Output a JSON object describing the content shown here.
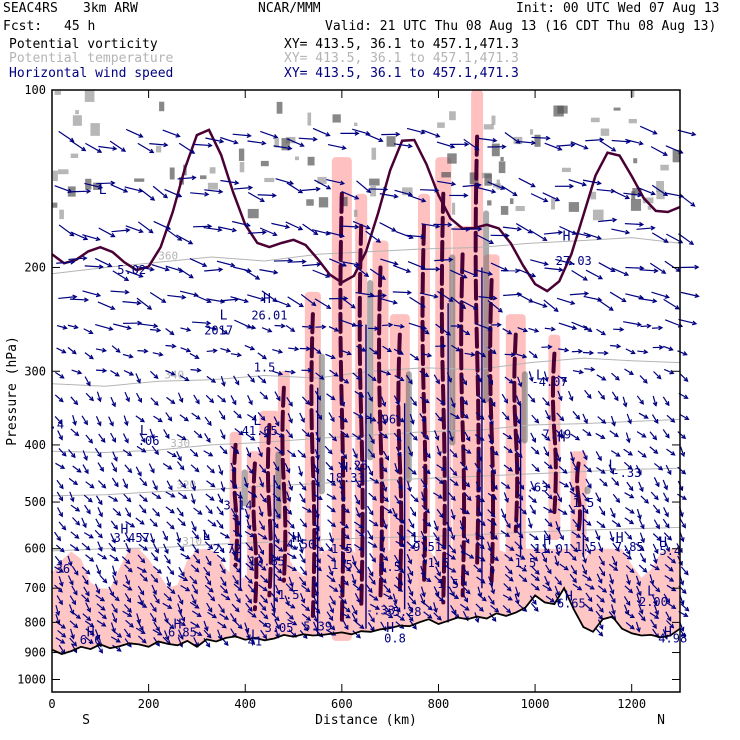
{
  "header": {
    "project": "SEAC4RS",
    "model": "3km ARW",
    "institution": "NCAR/MMM",
    "init": "Init: 00 UTC Wed 07 Aug 13",
    "fcst_label": "Fcst:",
    "fcst_value": "45 h",
    "valid": "Valid: 21 UTC Thu 08 Aug 13 (16 CDT Thu 08 Aug 13)"
  },
  "legend": [
    {
      "label": "Potential vorticity",
      "xy": "XY= 413.5, 36.1 to 457.1,471.3",
      "color": "#4a0034"
    },
    {
      "label": "Potential temperature",
      "xy": "XY= 413.5, 36.1 to 457.1,471.3",
      "color": "#b4b4b4"
    },
    {
      "label": "Horizontal wind speed",
      "xy": "XY= 413.5, 36.1 to 457.1,471.3",
      "color": "#000080"
    }
  ],
  "colors": {
    "pv": "#4a0034",
    "theta": "#b4b4b4",
    "wind": "#000080",
    "fill": "#ffc0c0",
    "terrain": "#000000"
  },
  "chart_data": {
    "type": "line",
    "title": "Vertical cross section",
    "xlabel": "Distance (km)",
    "ylabel": "Pressure (hPa)",
    "xlim": [
      0,
      1300
    ],
    "ylim": [
      1050,
      100
    ],
    "xticks": [
      0,
      200,
      400,
      600,
      800,
      1000,
      1200
    ],
    "yticks": [
      100,
      200,
      300,
      400,
      500,
      600,
      700,
      800,
      900,
      1000
    ],
    "end_labels": {
      "left": "S",
      "right": "N"
    },
    "terrain_pressure_hPa": {
      "x": [
        0,
        20,
        40,
        60,
        80,
        100,
        120,
        140,
        160,
        180,
        200,
        220,
        240,
        260,
        280,
        300,
        320,
        340,
        360,
        380,
        400,
        420,
        440,
        460,
        480,
        500,
        520,
        540,
        560,
        580,
        600,
        620,
        640,
        660,
        680,
        700,
        720,
        740,
        760,
        780,
        800,
        820,
        840,
        860,
        880,
        900,
        920,
        940,
        960,
        980,
        1000,
        1020,
        1040,
        1060,
        1080,
        1100,
        1120,
        1140,
        1160,
        1180,
        1200,
        1220,
        1240,
        1260,
        1280,
        1300
      ],
      "values": [
        890,
        905,
        895,
        880,
        888,
        872,
        885,
        878,
        868,
        872,
        880,
        862,
        870,
        875,
        860,
        880,
        855,
        862,
        850,
        845,
        856,
        850,
        858,
        852,
        840,
        846,
        838,
        842,
        840,
        836,
        832,
        838,
        828,
        830,
        822,
        818,
        810,
        812,
        800,
        790,
        805,
        795,
        785,
        790,
        782,
        788,
        772,
        780,
        770,
        755,
        720,
        740,
        745,
        700,
        760,
        815,
        830,
        790,
        782,
        820,
        835,
        842,
        840,
        848,
        842,
        820
      ]
    },
    "theta_contours_K": [
      {
        "label": "360",
        "values_hPa": [
          205,
          200,
          196,
          192,
          195,
          190,
          188,
          186,
          185,
          182,
          180,
          178,
          182
        ]
      },
      {
        "label": "340",
        "values_hPa": [
          315,
          318,
          312,
          310,
          305,
          308,
          300,
          296,
          298,
          290,
          285,
          288,
          290
        ]
      },
      {
        "label": "330",
        "values_hPa": [
          410,
          412,
          408,
          400,
          396,
          390,
          385,
          380,
          378,
          370,
          368,
          365,
          362
        ]
      },
      {
        "label": "320",
        "values_hPa": [
          488,
          486,
          480,
          476,
          470,
          465,
          460,
          456,
          452,
          448,
          444,
          440,
          438
        ]
      },
      {
        "label": "310",
        "values_hPa": [
          605,
          600,
          598,
          590,
          585,
          580,
          575,
          572,
          568,
          562,
          558,
          555,
          552
        ]
      }
    ],
    "theta_x_km": [
      0,
      110,
      220,
      330,
      440,
      550,
      660,
      770,
      880,
      990,
      1100,
      1200,
      1300
    ],
    "pv_updraft_columns": [
      {
        "x_km": 380,
        "top_hPa": 400,
        "bottom_hPa": 640
      },
      {
        "x_km": 420,
        "top_hPa": 430,
        "bottom_hPa": 760
      },
      {
        "x_km": 450,
        "top_hPa": 370,
        "bottom_hPa": 720
      },
      {
        "x_km": 480,
        "top_hPa": 320,
        "bottom_hPa": 680
      },
      {
        "x_km": 540,
        "top_hPa": 240,
        "bottom_hPa": 780
      },
      {
        "x_km": 600,
        "top_hPa": 150,
        "bottom_hPa": 800
      },
      {
        "x_km": 640,
        "top_hPa": 170,
        "bottom_hPa": 760
      },
      {
        "x_km": 680,
        "top_hPa": 200,
        "bottom_hPa": 720
      },
      {
        "x_km": 720,
        "top_hPa": 260,
        "bottom_hPa": 700
      },
      {
        "x_km": 770,
        "top_hPa": 170,
        "bottom_hPa": 690
      },
      {
        "x_km": 810,
        "top_hPa": 150,
        "bottom_hPa": 740
      },
      {
        "x_km": 850,
        "top_hPa": 190,
        "bottom_hPa": 720
      },
      {
        "x_km": 880,
        "top_hPa": 120,
        "bottom_hPa": 640
      },
      {
        "x_km": 910,
        "top_hPa": 210,
        "bottom_hPa": 680
      },
      {
        "x_km": 960,
        "top_hPa": 260,
        "bottom_hPa": 560
      },
      {
        "x_km": 1040,
        "top_hPa": 280,
        "bottom_hPa": 520
      },
      {
        "x_km": 1090,
        "top_hPa": 430,
        "bottom_hPa": 560
      }
    ],
    "annotations": [
      {
        "text": "L",
        "x_km": 105,
        "p_hPa": 150
      },
      {
        "text": "5.02",
        "x_km": 165,
        "p_hPa": 205
      },
      {
        "text": "L",
        "x_km": 355,
        "p_hPa": 245
      },
      {
        "text": "26.01",
        "x_km": 450,
        "p_hPa": 245
      },
      {
        "text": "2017",
        "x_km": 345,
        "p_hPa": 260
      },
      {
        "text": "H",
        "x_km": 445,
        "p_hPa": 230
      },
      {
        "text": "L",
        "x_km": 190,
        "p_hPa": 385
      },
      {
        "text": ".06",
        "x_km": 200,
        "p_hPa": 400
      },
      {
        "text": "L",
        "x_km": 425,
        "p_hPa": 370
      },
      {
        "text": "41.65",
        "x_km": 430,
        "p_hPa": 385
      },
      {
        "text": "H",
        "x_km": 605,
        "p_hPa": 445
      },
      {
        "text": "4.25",
        "x_km": 625,
        "p_hPa": 440
      },
      {
        "text": "18.33",
        "x_km": 610,
        "p_hPa": 462
      },
      {
        "text": "H",
        "x_km": 655,
        "p_hPa": 368
      },
      {
        "text": ".96",
        "x_km": 690,
        "p_hPa": 368
      },
      {
        "text": "3.14",
        "x_km": 385,
        "p_hPa": 515
      },
      {
        "text": "H",
        "x_km": 150,
        "p_hPa": 565
      },
      {
        "text": "3.457",
        "x_km": 165,
        "p_hPa": 585
      },
      {
        "text": "L",
        "x_km": 320,
        "p_hPa": 580
      },
      {
        "text": "-2.72",
        "x_km": 355,
        "p_hPa": 610
      },
      {
        "text": "H",
        "x_km": 505,
        "p_hPa": 585
      },
      {
        "text": "4.50",
        "x_km": 515,
        "p_hPa": 600
      },
      {
        "text": "12.85",
        "x_km": 445,
        "p_hPa": 640
      },
      {
        "text": "L",
        "x_km": 755,
        "p_hPa": 585
      },
      {
        "text": ".9.51",
        "x_km": 770,
        "p_hPa": 605
      },
      {
        "text": "H",
        "x_km": 1025,
        "p_hPa": 590
      },
      {
        "text": "11.01",
        "x_km": 1035,
        "p_hPa": 610
      },
      {
        "text": "1.5",
        "x_km": 1105,
        "p_hPa": 605
      },
      {
        "text": "H",
        "x_km": 1175,
        "p_hPa": 585
      },
      {
        "text": "7.85",
        "x_km": 1195,
        "p_hPa": 605
      },
      {
        "text": "H",
        "x_km": 1265,
        "p_hPa": 595
      },
      {
        "text": "5.4",
        "x_km": 1280,
        "p_hPa": 615
      },
      {
        "text": "H",
        "x_km": 1055,
        "p_hPa": 395
      },
      {
        "text": "7.49",
        "x_km": 1045,
        "p_hPa": 390
      },
      {
        "text": "L",
        "x_km": 1160,
        "p_hPa": 440
      },
      {
        "text": "-.33",
        "x_km": 1190,
        "p_hPa": 453
      },
      {
        "text": "L",
        "x_km": 1010,
        "p_hPa": 310
      },
      {
        "text": "-4.07",
        "x_km": 1030,
        "p_hPa": 318
      },
      {
        "text": "H",
        "x_km": 1065,
        "p_hPa": 180
      },
      {
        "text": "27.03",
        "x_km": 1080,
        "p_hPa": 198
      },
      {
        "text": ".63",
        "x_km": 1005,
        "p_hPa": 480
      },
      {
        "text": "1.5",
        "x_km": 1100,
        "p_hPa": 510
      },
      {
        "text": "1.5",
        "x_km": 600,
        "p_hPa": 650
      },
      {
        "text": "1.5",
        "x_km": 700,
        "p_hPa": 655
      },
      {
        "text": "1.5",
        "x_km": 800,
        "p_hPa": 645
      },
      {
        "text": "1.5",
        "x_km": 980,
        "p_hPa": 645
      },
      {
        "text": "1.5",
        "x_km": 820,
        "p_hPa": 700
      },
      {
        "text": "1.5",
        "x_km": 490,
        "p_hPa": 730
      },
      {
        "text": "H",
        "x_km": 1070,
        "p_hPa": 735
      },
      {
        "text": "6.65",
        "x_km": 1075,
        "p_hPa": 755
      },
      {
        "text": "L",
        "x_km": 1240,
        "p_hPa": 720
      },
      {
        "text": "2.00",
        "x_km": 1245,
        "p_hPa": 750
      },
      {
        "text": "H",
        "x_km": 260,
        "p_hPa": 820
      },
      {
        "text": "6.85",
        "x_km": 270,
        "p_hPa": 845
      },
      {
        "text": "H",
        "x_km": 80,
        "p_hPa": 845
      },
      {
        "text": "6.6",
        "x_km": 80,
        "p_hPa": 870
      },
      {
        "text": "3.05",
        "x_km": 470,
        "p_hPa": 830
      },
      {
        "text": "5.39",
        "x_km": 550,
        "p_hPa": 825
      },
      {
        "text": "41",
        "x_km": 420,
        "p_hPa": 875
      },
      {
        "text": "L",
        "x_km": 420,
        "p_hPa": 855
      },
      {
        "text": "H",
        "x_km": 700,
        "p_hPa": 830
      },
      {
        "text": "0.8",
        "x_km": 710,
        "p_hPa": 865
      },
      {
        "text": "5.28",
        "x_km": 735,
        "p_hPa": 780
      },
      {
        "text": "-.33",
        "x_km": 680,
        "p_hPa": 775
      },
      {
        "text": "H",
        "x_km": 1275,
        "p_hPa": 845
      },
      {
        "text": "4.98",
        "x_km": 1285,
        "p_hPa": 865
      },
      {
        "text": "1.5",
        "x_km": 440,
        "p_hPa": 300
      },
      {
        "text": "1.5",
        "x_km": 600,
        "p_hPa": 610
      },
      {
        "text": ".4",
        "x_km": 10,
        "p_hPa": 375
      },
      {
        "text": ".36",
        "x_km": 15,
        "p_hPa": 660
      }
    ]
  }
}
